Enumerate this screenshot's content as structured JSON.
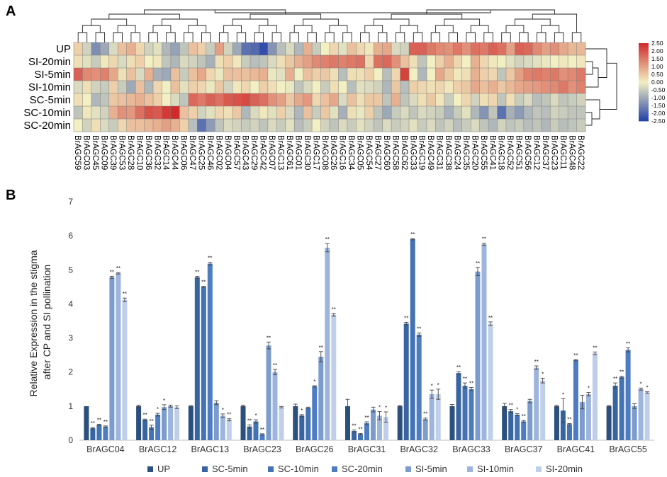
{
  "panel_a": {
    "label": "A",
    "colorbar": {
      "ticks": [
        "2.50",
        "2.00",
        "1.50",
        "1.00",
        "0.50",
        "0.00",
        "-0.50",
        "-1.00",
        "-1.50",
        "-2.00",
        "-2.50"
      ],
      "low_color": "#2140a8",
      "mid_color": "#f2efc2",
      "high_color": "#d02a2a"
    }
  },
  "panel_b": {
    "label": "B"
  },
  "chart_data": [
    {
      "type": "heatmap",
      "title": "",
      "row_labels": [
        "UP",
        "SI-20min",
        "SI-5min",
        "SI-10min",
        "SC-5min",
        "SC-10min",
        "SC-20min"
      ],
      "column_labels": [
        "BrAGC59",
        "BrAGC03",
        "BrAGC45",
        "BrAGC09",
        "BrAGC39",
        "BrAGC53",
        "BrAGC28",
        "BrAGC10",
        "BrAGC36",
        "BrAGC32",
        "BrAGC14",
        "BrAGC44",
        "BrAGC06",
        "BrAGC47",
        "BrAGC25",
        "BrAGC46",
        "BrAGC02",
        "BrAGC04",
        "BrAGC57",
        "BrAGC43",
        "BrAGC29",
        "BrAGC42",
        "BrAGC07",
        "BrAGC13",
        "BrAGC61",
        "BrAGC01",
        "BrAGC30",
        "BrAGC17",
        "BrAGC08",
        "BrAGC26",
        "BrAGC16",
        "BrAGC34",
        "BrAGC05",
        "BrAGC54",
        "BrAGC27",
        "BrAGC60",
        "BrAGC58",
        "BrAGC62",
        "BrAGC33",
        "BrAGC19",
        "BrAGC49",
        "BrAGC31",
        "BrAGC38",
        "BrAGC24",
        "BrAGC35",
        "BrAGC20",
        "BrAGC55",
        "BrAGC41",
        "BrAGC18",
        "BrAGC52",
        "BrAGC51",
        "BrAGC56",
        "BrAGC12",
        "BrAGC37",
        "BrAGC23",
        "BrAGC11",
        "BrAGC48",
        "BrAGC22"
      ],
      "value_range": [
        -2.5,
        2.5
      ],
      "values": [
        [
          0.4,
          -0.4,
          -1.4,
          -1.0,
          -0.3,
          0.6,
          0.8,
          0.3,
          -0.4,
          -0.2,
          -0.8,
          -1.1,
          -0.6,
          0.6,
          0.4,
          -0.5,
          1.0,
          -0.4,
          -1.0,
          -1.8,
          -1.9,
          -2.3,
          -1.3,
          -0.7,
          -0.3,
          -0.8,
          0.8,
          -0.5,
          0.0,
          0.3,
          -0.2,
          0.6,
          0.3,
          0.1,
          0.8,
          0.9,
          -0.3,
          -0.4,
          1.8,
          1.8,
          1.5,
          1.3,
          1.2,
          1.5,
          1.2,
          1.6,
          1.5,
          1.8,
          1.6,
          1.0,
          1.8,
          1.7,
          1.3,
          1.0,
          1.2,
          0.9,
          0.7,
          0.7
        ],
        [
          0.2,
          -0.2,
          -0.5,
          0.1,
          0.3,
          -0.3,
          0.2,
          0.4,
          0.0,
          0.1,
          -0.6,
          -0.8,
          -0.3,
          -0.4,
          -0.6,
          -0.9,
          0.2,
          0.4,
          0.1,
          -0.5,
          -0.7,
          -0.6,
          -0.3,
          0.2,
          0.5,
          0.8,
          1.0,
          1.3,
          1.4,
          1.5,
          1.4,
          1.5,
          1.6,
          0.3,
          1.6,
          1.7,
          1.2,
          0.6,
          0.2,
          -0.6,
          0.0,
          0.4,
          0.8,
          0.3,
          0.0,
          0.8,
          0.3,
          0.1,
          0.0,
          -0.2,
          -0.4,
          -0.3,
          -0.2,
          -0.1,
          0.0,
          0.1,
          0.0,
          0.1
        ],
        [
          1.8,
          1.3,
          1.2,
          1.4,
          0.9,
          0.2,
          0.6,
          -0.3,
          0.8,
          -0.9,
          -1.0,
          0.6,
          -0.5,
          0.6,
          0.9,
          0.3,
          -0.1,
          0.6,
          0.6,
          0.6,
          0.7,
          0.8,
          -0.1,
          -0.2,
          0.8,
          0.0,
          0.6,
          0.4,
          0.5,
          0.2,
          -0.7,
          0.2,
          0.2,
          0.4,
          0.0,
          -0.7,
          0.3,
          2.2,
          0.0,
          -0.8,
          0.0,
          0.9,
          0.5,
          0.1,
          0.2,
          0.8,
          0.4,
          0.3,
          -0.6,
          0.5,
          1.0,
          1.4,
          1.5,
          1.4,
          1.5,
          1.2,
          1.3,
          1.5
        ],
        [
          -0.3,
          0.2,
          -0.4,
          -0.5,
          0.4,
          -0.5,
          -1.0,
          0.6,
          -0.8,
          0.3,
          0.0,
          0.6,
          -0.2,
          0.4,
          0.3,
          -0.1,
          0.5,
          -0.4,
          0.1,
          0.3,
          0.0,
          0.4,
          0.2,
          0.0,
          -0.1,
          -0.6,
          -0.3,
          0.0,
          -0.5,
          0.2,
          0.0,
          -0.7,
          -0.2,
          -0.3,
          -0.4,
          -0.8,
          0.5,
          -0.7,
          0.4,
          0.3,
          0.2,
          0.3,
          0.1,
          0.4,
          0.5,
          0.9,
          0.6,
          0.8,
          0.5,
          0.7,
          0.9,
          1.0,
          1.1,
          1.2,
          1.3,
          1.5,
          1.2,
          1.4
        ],
        [
          0.2,
          0.0,
          -0.8,
          -0.6,
          0.5,
          0.6,
          0.7,
          0.8,
          0.6,
          0.4,
          0.0,
          -0.3,
          -0.6,
          1.7,
          1.5,
          1.8,
          1.6,
          1.9,
          2.0,
          2.1,
          1.8,
          1.6,
          1.2,
          1.0,
          0.5,
          0.9,
          1.1,
          0.3,
          0.6,
          0.9,
          -0.3,
          0.6,
          0.2,
          0.5,
          0.5,
          -0.6,
          0.8,
          -0.6,
          -0.3,
          0.2,
          0.5,
          0.1,
          -0.5,
          0.0,
          0.3,
          -0.4,
          0.2,
          0.3,
          -0.6,
          0.2,
          -0.5,
          -0.3,
          -0.7,
          -0.6,
          -0.3,
          -0.6,
          -0.5,
          -0.4
        ],
        [
          -0.6,
          0.1,
          -0.2,
          -0.4,
          0.8,
          1.2,
          1.1,
          1.6,
          2.0,
          1.9,
          2.3,
          2.5,
          0.6,
          0.4,
          -0.4,
          -0.2,
          0.3,
          0.2,
          0.5,
          -0.8,
          -0.3,
          0.1,
          -0.2,
          0.4,
          -0.3,
          -0.8,
          0.6,
          -0.5,
          0.5,
          -0.2,
          -0.9,
          0.2,
          -0.1,
          0.4,
          -0.6,
          -1.0,
          -0.5,
          -0.3,
          -0.6,
          -0.3,
          -0.4,
          -0.5,
          -0.9,
          -0.5,
          -0.2,
          -0.8,
          -1.3,
          -0.6,
          -1.8,
          -0.9,
          -1.2,
          -0.8,
          -0.6,
          -0.7,
          -0.4,
          -0.5,
          -0.6,
          -0.6
        ],
        [
          0.0,
          -0.4,
          0.2,
          -0.3,
          -0.5,
          0.3,
          0.6,
          0.6,
          0.7,
          0.8,
          1.0,
          0.8,
          0.4,
          -0.7,
          -1.8,
          -1.2,
          -0.6,
          -0.3,
          -0.4,
          -0.5,
          -0.4,
          -0.6,
          -0.3,
          -0.5,
          -0.2,
          -0.7,
          -0.5,
          0.0,
          -0.4,
          -0.6,
          -0.3,
          -0.5,
          -0.2,
          -0.4,
          -0.6,
          -0.3,
          -0.5,
          -0.4,
          -0.2,
          -0.5,
          -0.3,
          -0.6,
          -0.4,
          -0.7,
          -0.5,
          -0.3,
          -0.6,
          -0.8,
          -0.4,
          -0.6,
          -0.5,
          -0.7,
          -0.6,
          -0.8,
          -0.5,
          -0.7,
          -0.6,
          -0.5
        ]
      ]
    },
    {
      "type": "bar",
      "title": "",
      "xlabel": "",
      "ylabel": "Relative Expression in the stigma after CP and SI pollination",
      "ylabel_lines": [
        "Relative Expression in the stigma",
        "after CP and SI pollination"
      ],
      "ylim": [
        0,
        7
      ],
      "yticks": [
        0,
        1,
        2,
        3,
        4,
        5,
        6,
        7
      ],
      "legend_position": "bottom",
      "categories": [
        "BrAGC04",
        "BrAGC12",
        "BrAGC13",
        "BrAGC23",
        "BrAGC26",
        "BrAGC31",
        "BrAGC32",
        "BrAGC33",
        "BrAGC37",
        "BrAGC41",
        "BrAGC55"
      ],
      "series": [
        {
          "name": "UP",
          "color": "#2b4f7e",
          "values": [
            1.0,
            1.0,
            1.0,
            1.0,
            1.0,
            1.0,
            1.0,
            1.0,
            1.0,
            1.0,
            1.0
          ],
          "errors": [
            0.0,
            0.03,
            0.02,
            0.03,
            0.06,
            0.2,
            0.02,
            0.05,
            0.08,
            0.03,
            0.02
          ],
          "sig": [
            "",
            "",
            "",
            "",
            "",
            "",
            "",
            "",
            "",
            "",
            ""
          ]
        },
        {
          "name": "SC-5min",
          "color": "#3864a0",
          "values": [
            0.35,
            0.6,
            4.78,
            0.4,
            0.72,
            0.27,
            3.42,
            1.97,
            0.85,
            0.87,
            1.6
          ],
          "errors": [
            0.02,
            0.02,
            0.03,
            0.05,
            0.03,
            0.03,
            0.04,
            0.04,
            0.05,
            0.35,
            0.08
          ],
          "sig": [
            "**",
            "**",
            "**",
            "**",
            "*",
            "**",
            "**",
            "**",
            "**",
            "*",
            "**"
          ]
        },
        {
          "name": "SC-10min",
          "color": "#4473b4",
          "values": [
            0.45,
            0.38,
            4.5,
            0.55,
            0.95,
            0.18,
            5.9,
            1.6,
            0.75,
            0.47,
            1.85
          ],
          "errors": [
            0.02,
            0.06,
            0.02,
            0.05,
            0.02,
            0.02,
            0.02,
            0.08,
            0.03,
            0.02,
            0.03
          ],
          "sig": [
            "**",
            "**",
            "**",
            "*",
            "",
            "**",
            "**",
            "**",
            "*",
            "**",
            "**"
          ]
        },
        {
          "name": "SC-20min",
          "color": "#4d7dc0",
          "values": [
            0.4,
            0.75,
            5.18,
            0.17,
            1.58,
            0.5,
            3.1,
            1.5,
            0.55,
            2.35,
            2.65
          ],
          "errors": [
            0.02,
            0.04,
            0.04,
            0.02,
            0.02,
            0.04,
            0.05,
            0.05,
            0.03,
            0.02,
            0.06
          ],
          "sig": [
            "**",
            "*",
            "**",
            "**",
            "*",
            "**",
            "**",
            "**",
            "**",
            "**",
            "**"
          ]
        },
        {
          "name": "SI-5min",
          "color": "#7b9ccd",
          "values": [
            4.78,
            0.97,
            1.1,
            2.78,
            2.45,
            0.9,
            0.62,
            4.95,
            1.15,
            1.12,
            1.0
          ],
          "errors": [
            0.03,
            0.07,
            0.06,
            0.1,
            0.15,
            0.07,
            0.03,
            0.12,
            0.05,
            0.2,
            0.07
          ],
          "sig": [
            "**",
            "*",
            "",
            "**",
            "**",
            "",
            "**",
            "**",
            "",
            "",
            ""
          ]
        },
        {
          "name": "SI-10min",
          "color": "#9db5dc",
          "values": [
            4.9,
            1.0,
            0.72,
            2.0,
            5.65,
            0.72,
            1.35,
            5.75,
            2.13,
            1.35,
            1.5
          ],
          "errors": [
            0.02,
            0.03,
            0.05,
            0.08,
            0.12,
            0.12,
            0.12,
            0.03,
            0.05,
            0.05,
            0.03
          ],
          "sig": [
            "**",
            "",
            "*",
            "**",
            "**",
            "*",
            "*",
            "**",
            "**",
            "*",
            "*"
          ]
        },
        {
          "name": "SI-20min",
          "color": "#c0cfe9",
          "values": [
            4.12,
            0.97,
            0.6,
            0.97,
            3.68,
            0.68,
            1.35,
            3.42,
            1.75,
            2.55,
            1.4
          ],
          "errors": [
            0.05,
            0.04,
            0.03,
            0.02,
            0.04,
            0.15,
            0.15,
            0.05,
            0.07,
            0.04,
            0.02
          ],
          "sig": [
            "**",
            "",
            "**",
            "",
            "**",
            "*",
            "*",
            "**",
            "*",
            "**",
            "*"
          ]
        }
      ]
    }
  ]
}
